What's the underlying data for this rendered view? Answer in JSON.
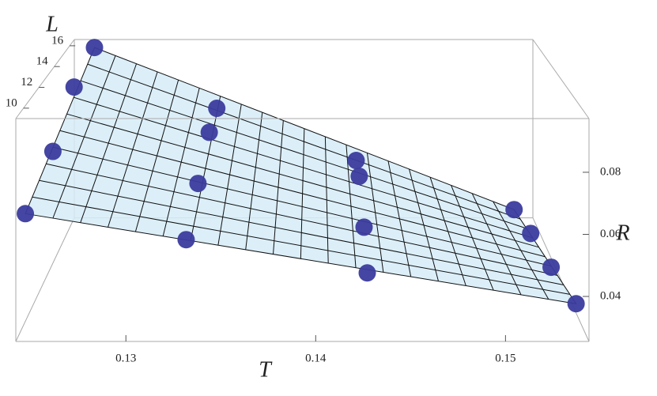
{
  "chart_data": {
    "type": "scatter3d",
    "x_label": "T",
    "y_label": "R",
    "z_label": "L",
    "x": [
      0.1243,
      0.133,
      0.1428,
      0.1541,
      0.125,
      0.1333,
      0.1428,
      0.1535,
      0.1254,
      0.1336,
      0.1427,
      0.1531,
      0.1258,
      0.1337,
      0.1427,
      0.1529
    ],
    "y": [
      0.0624,
      0.0538,
      0.0428,
      0.0326,
      0.0749,
      0.0637,
      0.0484,
      0.0344,
      0.0897,
      0.0729,
      0.0566,
      0.0354,
      0.0966,
      0.0726,
      0.052,
      0.0326
    ],
    "z": [
      10,
      10,
      10,
      10,
      12,
      12,
      12,
      12,
      14,
      14,
      14,
      14,
      16,
      16,
      16,
      16
    ],
    "color": "#3b3b9e",
    "surface_color": "#d6ecf8",
    "xlim": [
      0.1242,
      0.1544
    ],
    "ylim": [
      0.0255,
      0.0973
    ],
    "zlim": [
      9,
      16.6
    ],
    "xticks": [
      0.13,
      0.14,
      0.15
    ],
    "yticks": [
      0.04,
      0.06,
      0.08
    ],
    "zticks": [
      10,
      12,
      14,
      16
    ]
  }
}
